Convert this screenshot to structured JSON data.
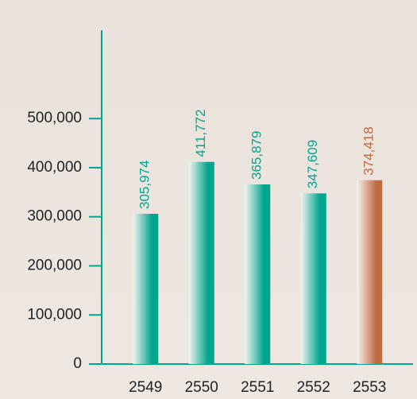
{
  "chart_data": {
    "type": "bar",
    "categories": [
      "2549",
      "2550",
      "2551",
      "2552",
      "2553"
    ],
    "values": [
      305974,
      411772,
      365879,
      347609,
      374418
    ],
    "value_labels": [
      "305,974",
      "411,772",
      "365,879",
      "347,609",
      "374,418"
    ],
    "colors": [
      "#00a58e",
      "#00a58e",
      "#00a58e",
      "#00a58e",
      "#c06a42"
    ],
    "axis_color": "#00a58e",
    "ylim": [
      0,
      680000
    ],
    "yticks": [
      {
        "value": 0,
        "label": "0"
      },
      {
        "value": 100000,
        "label": "100,000"
      },
      {
        "value": 200000,
        "label": "200,000"
      },
      {
        "value": 300000,
        "label": "300,000"
      },
      {
        "value": 400000,
        "label": "400,000"
      },
      {
        "value": 500000,
        "label": "500,000"
      }
    ]
  }
}
